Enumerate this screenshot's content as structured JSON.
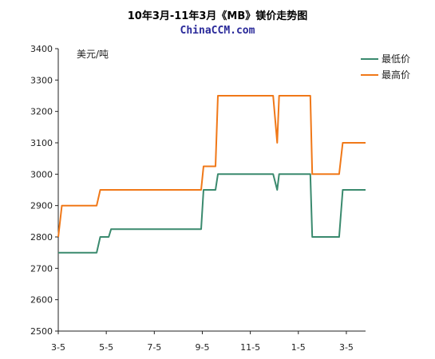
{
  "chart_data": {
    "type": "line",
    "title": "10年3月-11年3月《MB》镁价走势图",
    "subtitle": "ChinaCCM.com",
    "unit_label": "美元/吨",
    "xlabel": "",
    "ylabel": "",
    "ylim": [
      2500,
      3400
    ],
    "yticks": [
      2500,
      2600,
      2700,
      2800,
      2900,
      3000,
      3100,
      3200,
      3300,
      3400
    ],
    "xlim": [
      0,
      12.8
    ],
    "xticks": [
      {
        "value": 0,
        "label": "3-5"
      },
      {
        "value": 2,
        "label": "5-5"
      },
      {
        "value": 4,
        "label": "7-5"
      },
      {
        "value": 6,
        "label": "9-5"
      },
      {
        "value": 8,
        "label": "11-5"
      },
      {
        "value": 10,
        "label": "1-5"
      },
      {
        "value": 12,
        "label": "3-5"
      }
    ],
    "grid": false,
    "legend_position": "top-right",
    "series": [
      {
        "name": "最低价",
        "color": "#3a8a6e",
        "points": [
          [
            0,
            2750
          ],
          [
            1.6,
            2750
          ],
          [
            1.75,
            2800
          ],
          [
            2.1,
            2800
          ],
          [
            2.2,
            2825
          ],
          [
            5.95,
            2825
          ],
          [
            6.05,
            2950
          ],
          [
            6.55,
            2950
          ],
          [
            6.65,
            3000
          ],
          [
            8.95,
            3000
          ],
          [
            9.12,
            2950
          ],
          [
            9.2,
            3000
          ],
          [
            10.5,
            3000
          ],
          [
            10.58,
            2800
          ],
          [
            11.7,
            2800
          ],
          [
            11.85,
            2950
          ],
          [
            12.8,
            2950
          ]
        ]
      },
      {
        "name": "最高价",
        "color": "#f07818",
        "points": [
          [
            0,
            2800
          ],
          [
            0.15,
            2900
          ],
          [
            1.6,
            2900
          ],
          [
            1.75,
            2950
          ],
          [
            5.95,
            2950
          ],
          [
            6.05,
            3025
          ],
          [
            6.55,
            3025
          ],
          [
            6.65,
            3250
          ],
          [
            8.95,
            3250
          ],
          [
            9.12,
            3100
          ],
          [
            9.2,
            3250
          ],
          [
            10.5,
            3250
          ],
          [
            10.58,
            3000
          ],
          [
            11.7,
            3000
          ],
          [
            11.85,
            3100
          ],
          [
            12.8,
            3100
          ]
        ]
      }
    ]
  }
}
